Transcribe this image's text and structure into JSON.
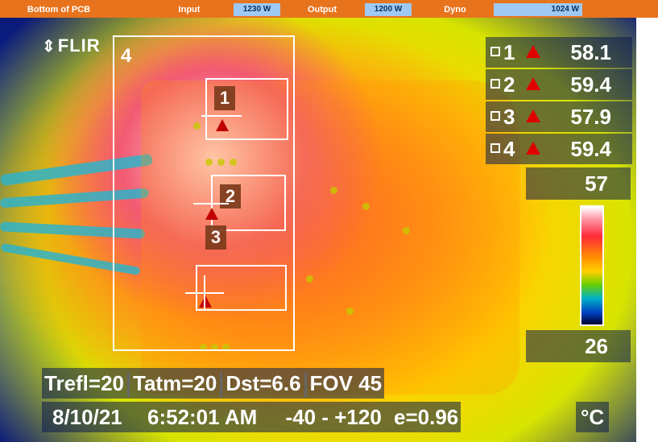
{
  "topbar": {
    "items": [
      {
        "label": "Bottom of PCB"
      },
      {
        "label": "Input",
        "value": "1230 W"
      },
      {
        "label": "Output",
        "value": "1200 W"
      },
      {
        "label": "Dyno",
        "value": "1024 W"
      }
    ]
  },
  "logo": {
    "text": "FLIR",
    "icon": "flir-chevron-icon"
  },
  "regions": {
    "box4_label": "4",
    "markers": [
      "1",
      "2",
      "3"
    ]
  },
  "measurements": [
    {
      "id": "1",
      "value": "58.1"
    },
    {
      "id": "2",
      "value": "59.4"
    },
    {
      "id": "3",
      "value": "57.9"
    },
    {
      "id": "4",
      "value": "59.4"
    }
  ],
  "scale": {
    "max": "57",
    "min": "26"
  },
  "params": {
    "trefl": "Trefl=20",
    "tatm": "Tatm=20",
    "dst": "Dst=6.6",
    "fov": "FOV 45",
    "date": "8/10/21",
    "time": "6:52:01 AM",
    "range": "-40 - +120",
    "emissivity": "e=0.96",
    "unit": "°C"
  },
  "colors": {
    "topbar": "#e8731d",
    "value_box": "#9ec9f2",
    "warn": "#e00000"
  }
}
